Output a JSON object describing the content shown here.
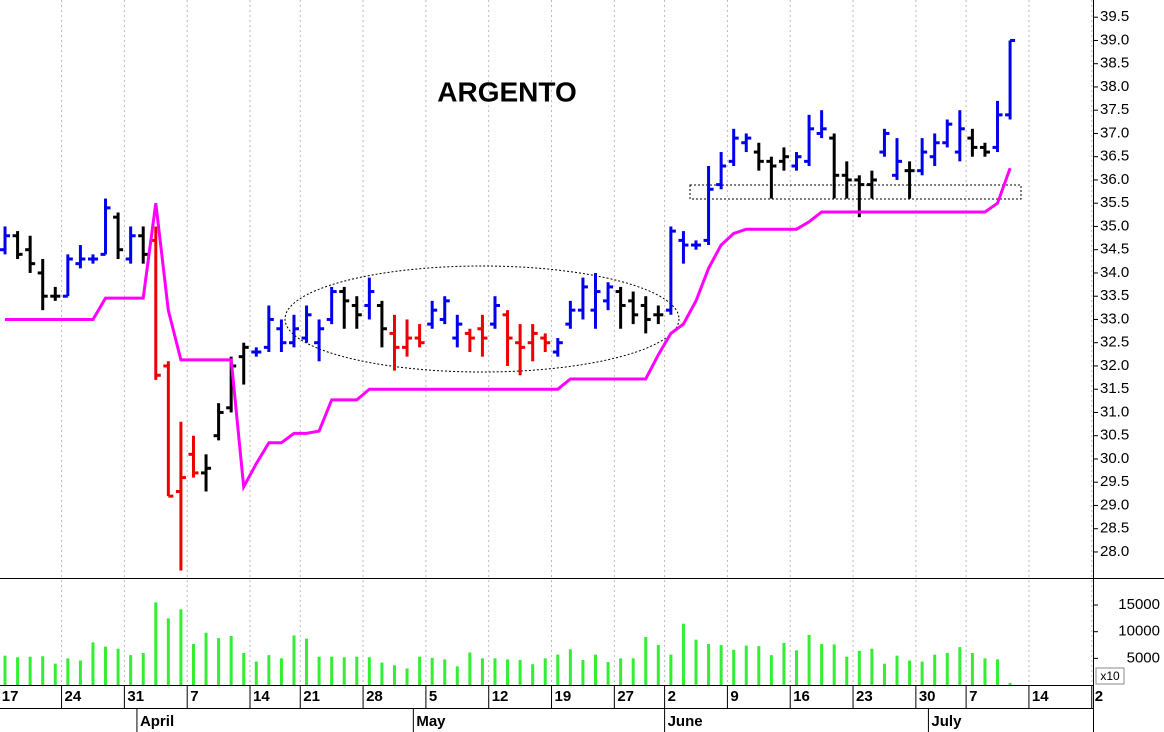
{
  "chart_data": {
    "type": "ohlc",
    "title": "ARGENTO",
    "x": [
      0,
      1,
      2,
      3,
      4,
      5,
      6,
      7,
      8,
      9,
      10,
      11,
      12,
      13,
      14,
      15,
      16,
      17,
      18,
      19,
      20,
      21,
      22,
      23,
      24,
      25,
      26,
      27,
      28,
      29,
      30,
      31,
      32,
      33,
      34,
      35,
      36,
      37,
      38,
      39,
      40,
      41,
      42,
      43,
      44,
      45,
      46,
      47,
      48,
      49,
      50,
      51,
      52,
      53,
      54,
      55,
      56,
      57,
      58,
      59,
      60,
      61,
      62,
      63,
      64,
      65,
      66,
      67,
      68,
      69,
      70,
      71,
      72,
      73,
      74,
      75,
      76,
      77,
      78,
      79,
      80
    ],
    "open": [
      34.5,
      34.8,
      34.5,
      34.0,
      33.5,
      33.5,
      34.2,
      34.3,
      34.4,
      35.2,
      34.3,
      34.8,
      34.7,
      32.0,
      29.3,
      30.1,
      29.7,
      30.5,
      31.1,
      32.2,
      32.3,
      32.4,
      32.8,
      32.5,
      32.6,
      32.5,
      33.0,
      33.6,
      33.3,
      33.3,
      33.3,
      32.7,
      32.4,
      32.6,
      32.9,
      33.0,
      32.6,
      32.7,
      32.8,
      32.9,
      33.1,
      32.5,
      32.5,
      32.6,
      32.3,
      32.9,
      33.2,
      33.2,
      33.4,
      33.6,
      33.4,
      33.3,
      33.1,
      33.2,
      34.7,
      34.6,
      34.7,
      35.9,
      36.4,
      36.8,
      36.6,
      36.4,
      36.4,
      36.3,
      36.4,
      37.0,
      36.9,
      36.1,
      36.0,
      35.9,
      36.6,
      36.1,
      36.2,
      36.2,
      36.5,
      36.8,
      36.6,
      36.9,
      36.7,
      36.7,
      37.4
    ],
    "high": [
      35.0,
      34.9,
      34.8,
      34.3,
      33.7,
      34.4,
      34.6,
      34.4,
      35.6,
      35.3,
      35.0,
      35.0,
      35.0,
      32.1,
      30.8,
      30.5,
      30.1,
      31.2,
      32.2,
      32.5,
      32.4,
      33.3,
      33.0,
      33.1,
      33.3,
      33.0,
      33.7,
      33.7,
      33.5,
      33.9,
      33.4,
      33.1,
      33.0,
      32.9,
      33.4,
      33.5,
      33.1,
      32.8,
      33.1,
      33.5,
      33.2,
      32.9,
      32.9,
      32.7,
      32.6,
      33.4,
      33.9,
      34.0,
      33.8,
      33.7,
      33.6,
      33.5,
      33.3,
      35.0,
      34.9,
      34.7,
      36.3,
      36.6,
      37.1,
      37.0,
      36.8,
      36.5,
      36.7,
      36.6,
      37.4,
      37.5,
      37.0,
      36.4,
      36.1,
      36.2,
      37.1,
      36.9,
      36.4,
      36.9,
      37.0,
      37.3,
      37.5,
      37.1,
      36.8,
      37.7,
      39.0
    ],
    "low": [
      34.4,
      34.3,
      34.0,
      33.2,
      33.4,
      33.5,
      34.1,
      34.2,
      34.4,
      34.3,
      34.2,
      34.2,
      31.7,
      29.2,
      27.6,
      29.6,
      29.3,
      30.4,
      31.0,
      31.6,
      32.2,
      32.3,
      32.3,
      32.4,
      32.5,
      32.1,
      32.9,
      32.8,
      32.8,
      33.0,
      32.4,
      31.9,
      32.2,
      32.4,
      32.8,
      32.9,
      32.4,
      32.3,
      32.2,
      32.8,
      32.0,
      31.8,
      32.1,
      32.3,
      32.2,
      32.8,
      33.0,
      32.8,
      33.2,
      32.8,
      32.9,
      32.7,
      32.9,
      33.1,
      34.2,
      34.5,
      34.6,
      35.8,
      36.3,
      36.6,
      36.2,
      35.6,
      36.2,
      36.2,
      36.3,
      36.9,
      35.6,
      35.6,
      35.2,
      35.6,
      36.5,
      36.0,
      35.6,
      36.1,
      36.3,
      36.7,
      36.4,
      36.5,
      36.5,
      36.6,
      37.3
    ],
    "close": [
      34.8,
      34.4,
      34.2,
      33.5,
      33.5,
      34.3,
      34.3,
      34.3,
      35.4,
      34.5,
      34.8,
      34.4,
      31.8,
      29.2,
      29.6,
      29.7,
      29.8,
      31.0,
      32.0,
      32.4,
      32.3,
      33.0,
      32.5,
      32.8,
      33.1,
      32.8,
      33.6,
      33.4,
      33.1,
      33.6,
      32.8,
      32.4,
      32.6,
      32.5,
      33.2,
      33.4,
      32.9,
      32.6,
      32.6,
      33.3,
      32.6,
      32.4,
      32.7,
      32.5,
      32.5,
      33.2,
      33.7,
      33.6,
      33.7,
      33.3,
      33.1,
      33.0,
      33.1,
      34.9,
      34.6,
      34.6,
      35.8,
      36.3,
      36.9,
      36.9,
      36.4,
      36.3,
      36.5,
      36.5,
      37.1,
      37.1,
      36.1,
      36.0,
      35.9,
      36.0,
      37.0,
      36.4,
      36.2,
      36.6,
      36.8,
      37.2,
      37.1,
      36.7,
      36.6,
      37.4,
      39.0
    ],
    "bar_colors": [
      "#0000ee",
      "#000000",
      "#000000",
      "#000000",
      "#000000",
      "#0000ee",
      "#0000ee",
      "#0000ee",
      "#0000ee",
      "#000000",
      "#0000ee",
      "#000000",
      "#ee0000",
      "#ee0000",
      "#ee0000",
      "#ee0000",
      "#000000",
      "#000000",
      "#000000",
      "#000000",
      "#0000ee",
      "#0000ee",
      "#0000ee",
      "#0000ee",
      "#0000ee",
      "#0000ee",
      "#0000ee",
      "#000000",
      "#000000",
      "#0000ee",
      "#000000",
      "#ee0000",
      "#ee0000",
      "#ee0000",
      "#0000ee",
      "#0000ee",
      "#0000ee",
      "#ee0000",
      "#ee0000",
      "#0000ee",
      "#ee0000",
      "#ee0000",
      "#ee0000",
      "#ee0000",
      "#0000ee",
      "#0000ee",
      "#0000ee",
      "#0000ee",
      "#0000ee",
      "#000000",
      "#000000",
      "#000000",
      "#000000",
      "#0000ee",
      "#0000ee",
      "#0000ee",
      "#0000ee",
      "#0000ee",
      "#0000ee",
      "#0000ee",
      "#000000",
      "#000000",
      "#000000",
      "#0000ee",
      "#0000ee",
      "#0000ee",
      "#000000",
      "#000000",
      "#000000",
      "#000000",
      "#0000ee",
      "#0000ee",
      "#000000",
      "#0000ee",
      "#0000ee",
      "#0000ee",
      "#0000ee",
      "#000000",
      "#000000",
      "#0000ee",
      "#0000ee"
    ],
    "stop": {
      "color": "#ff00ff",
      "values": [
        33.0,
        33.0,
        33.0,
        33.0,
        33.0,
        33.0,
        33.0,
        33.0,
        33.46,
        33.46,
        33.46,
        33.46,
        35.5,
        33.2,
        32.13,
        32.13,
        32.13,
        32.13,
        32.13,
        29.4,
        29.9,
        30.35,
        30.35,
        30.55,
        30.55,
        30.6,
        31.27,
        31.27,
        31.27,
        31.5,
        31.5,
        31.5,
        31.5,
        31.5,
        31.5,
        31.5,
        31.5,
        31.5,
        31.5,
        31.5,
        31.5,
        31.5,
        31.5,
        31.5,
        31.5,
        31.72,
        31.72,
        31.72,
        31.72,
        31.72,
        31.72,
        31.72,
        32.24,
        32.7,
        32.9,
        33.4,
        34.1,
        34.6,
        34.85,
        34.94,
        34.94,
        34.94,
        34.94,
        34.94,
        35.1,
        35.31,
        35.31,
        35.31,
        35.31,
        35.31,
        35.31,
        35.31,
        35.31,
        35.31,
        35.31,
        35.31,
        35.31,
        35.31,
        35.31,
        35.5,
        36.25
      ]
    },
    "volume": {
      "color": "#33ee33",
      "multiplier_label": "x10",
      "ylim": [
        0,
        19700
      ],
      "yticks": [
        5000,
        10000,
        15000
      ],
      "values": [
        5500,
        5200,
        5300,
        5400,
        4000,
        5000,
        4600,
        8000,
        7200,
        6800,
        5600,
        6000,
        15500,
        12500,
        14200,
        7700,
        9800,
        8800,
        9200,
        6000,
        4400,
        5600,
        5000,
        9300,
        8700,
        5300,
        5300,
        5200,
        5300,
        5200,
        4200,
        3700,
        3100,
        5300,
        5100,
        4800,
        3500,
        6100,
        5000,
        5000,
        4800,
        4700,
        3900,
        5000,
        5700,
        6700,
        4700,
        5700,
        4300,
        5000,
        5000,
        9000,
        7500,
        5700,
        11500,
        8500,
        7700,
        7500,
        6600,
        7400,
        7300,
        5600,
        7900,
        6500,
        9400,
        7700,
        7600,
        5300,
        6400,
        6800,
        4000,
        5500,
        4600,
        4400,
        5700,
        6000,
        7100,
        6000,
        5000,
        4800,
        400
      ]
    },
    "xlim": [
      -0.4,
      86.6
    ],
    "xticks": [
      {
        "value": -0.5,
        "label": "17"
      },
      {
        "value": 4.5,
        "label": "24"
      },
      {
        "value": 9.5,
        "label": "31"
      },
      {
        "value": 14.5,
        "label": "7"
      },
      {
        "value": 19.5,
        "label": "14"
      },
      {
        "value": 23.5,
        "label": "21"
      },
      {
        "value": 28.5,
        "label": "28"
      },
      {
        "value": 33.5,
        "label": "5"
      },
      {
        "value": 38.5,
        "label": "12"
      },
      {
        "value": 43.5,
        "label": "19"
      },
      {
        "value": 48.5,
        "label": "27"
      },
      {
        "value": 52.5,
        "label": "2"
      },
      {
        "value": 57.5,
        "label": "9"
      },
      {
        "value": 62.5,
        "label": "16"
      },
      {
        "value": 67.5,
        "label": "23"
      },
      {
        "value": 72.5,
        "label": "30"
      },
      {
        "value": 76.5,
        "label": "7"
      },
      {
        "value": 81.5,
        "label": "14"
      },
      {
        "value": 86.5,
        "label": "2"
      }
    ],
    "month_ticks": [
      {
        "value": 10.5,
        "label": "April"
      },
      {
        "value": 32.5,
        "label": "May"
      },
      {
        "value": 52.5,
        "label": "June"
      },
      {
        "value": 73.5,
        "label": "July"
      }
    ],
    "ylim": [
      27.44,
      39.87
    ],
    "yticks": [
      {
        "value": 28,
        "label": "28.0"
      },
      {
        "value": 28.5,
        "label": "28.5"
      },
      {
        "value": 29,
        "label": "29.0"
      },
      {
        "value": 29.5,
        "label": "29.5"
      },
      {
        "value": 30,
        "label": "30.0"
      },
      {
        "value": 30.5,
        "label": "30.5"
      },
      {
        "value": 31,
        "label": "31.0"
      },
      {
        "value": 31.5,
        "label": "31.5"
      },
      {
        "value": 32,
        "label": "32.0"
      },
      {
        "value": 32.5,
        "label": "32.5"
      },
      {
        "value": 33,
        "label": "33.0"
      },
      {
        "value": 33.5,
        "label": "33.5"
      },
      {
        "value": 34,
        "label": "34.0"
      },
      {
        "value": 34.5,
        "label": "34.5"
      },
      {
        "value": 35,
        "label": "35.0"
      },
      {
        "value": 35.5,
        "label": "35.5"
      },
      {
        "value": 36,
        "label": "36.0"
      },
      {
        "value": 36.5,
        "label": "36.5"
      },
      {
        "value": 37,
        "label": "37.0"
      },
      {
        "value": 37.5,
        "label": "37.5"
      },
      {
        "value": 38,
        "label": "38.0"
      },
      {
        "value": 38.5,
        "label": "38.5"
      },
      {
        "value": 39,
        "label": "39.0"
      },
      {
        "value": 39.5,
        "label": "39.5"
      }
    ],
    "grid": true
  }
}
